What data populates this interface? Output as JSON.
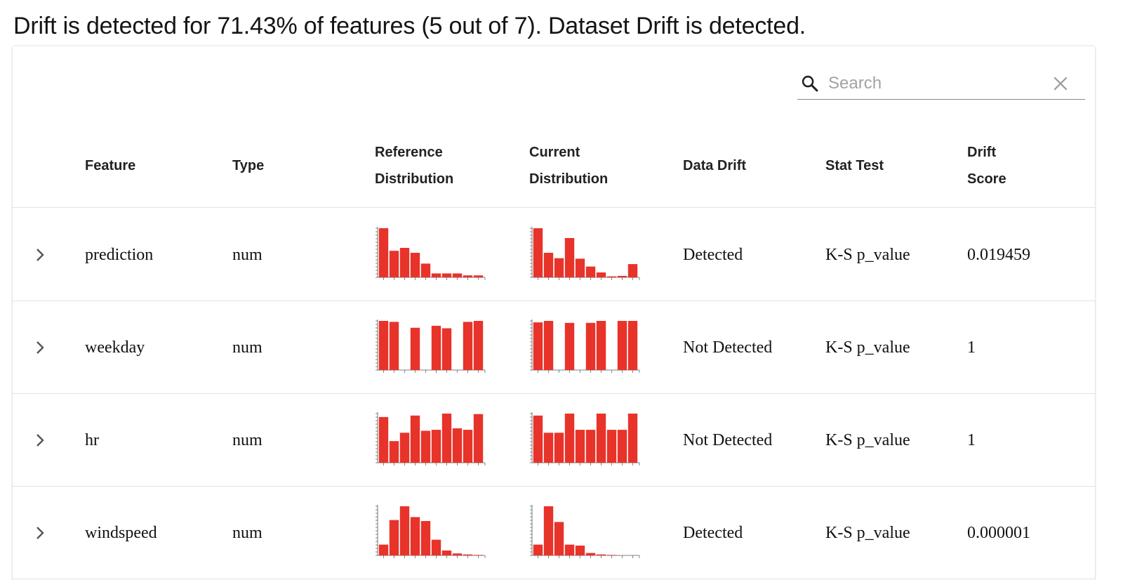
{
  "summary": "Drift is detected for 71.43% of features (5 out of 7). Dataset Drift is detected.",
  "search": {
    "placeholder": "Search",
    "value": ""
  },
  "icons": {
    "search": "search-icon",
    "clear": "close-icon",
    "expand": "chevron-right-icon"
  },
  "colors": {
    "bar": "#e8332a",
    "axis": "#555555",
    "divider": "#e2e2e2"
  },
  "columns": {
    "feature": "Feature",
    "type": "Type",
    "reference_1": "Reference",
    "reference_2": "Distribution",
    "current_1": "Current",
    "current_2": "Distribution",
    "data_drift": "Data Drift",
    "stat_test": "Stat Test",
    "drift_score_1": "Drift",
    "drift_score_2": "Score"
  },
  "rows": [
    {
      "feature": "prediction",
      "type": "num",
      "data_drift": "Detected",
      "stat_test": "K-S p_value",
      "drift_score": "0.019459",
      "reference_hist": [
        1,
        0.54,
        0.6,
        0.5,
        0.28,
        0.08,
        0.08,
        0.08,
        0.04,
        0.04
      ],
      "current_hist": [
        1,
        0.5,
        0.39,
        0.8,
        0.38,
        0.22,
        0.1,
        0.02,
        0.03,
        0.27
      ]
    },
    {
      "feature": "weekday",
      "type": "num",
      "data_drift": "Not Detected",
      "stat_test": "K-S p_value",
      "drift_score": "1",
      "reference_hist": [
        1,
        0.98,
        0,
        0.86,
        0,
        0.9,
        0.85,
        0,
        0.98,
        1
      ],
      "current_hist": [
        0.97,
        1,
        0,
        0.96,
        0,
        0.96,
        1,
        0,
        1,
        1
      ]
    },
    {
      "feature": "hr",
      "type": "num",
      "data_drift": "Not Detected",
      "stat_test": "K-S p_value",
      "drift_score": "1",
      "reference_hist": [
        0.93,
        0.44,
        0.61,
        0.96,
        0.65,
        0.67,
        1,
        0.7,
        0.67,
        0.99
      ],
      "current_hist": [
        0.96,
        0.61,
        0.61,
        1,
        0.67,
        0.67,
        1,
        0.67,
        0.67,
        1
      ]
    },
    {
      "feature": "windspeed",
      "type": "num",
      "data_drift": "Detected",
      "stat_test": "K-S p_value",
      "drift_score": "0.000001",
      "reference_hist": [
        0.22,
        0.72,
        1,
        0.78,
        0.7,
        0.32,
        0.1,
        0.04,
        0.02,
        0.01
      ],
      "current_hist": [
        0.22,
        1,
        0.68,
        0.22,
        0.2,
        0.05,
        0.02,
        0.01,
        0,
        0
      ]
    }
  ]
}
